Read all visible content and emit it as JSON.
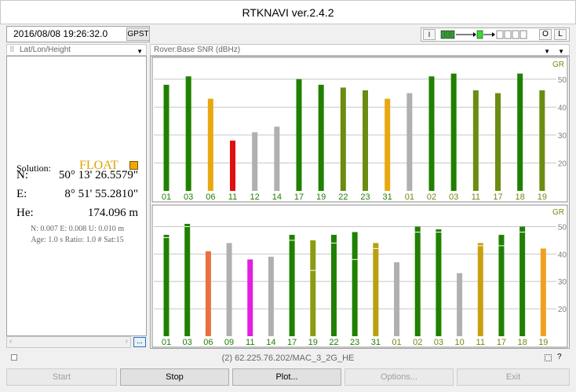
{
  "window": {
    "title": "RTKNAVI ver.2.4.2"
  },
  "toolbar": {
    "time": "2016/08/08 19:26:32.0",
    "time_system": "GPST",
    "i_label": "I",
    "o_label": "O",
    "l_label": "L"
  },
  "left": {
    "header": "Lat/Lon/Height",
    "solution_label": "Solution:",
    "solution_value": "FLOAT",
    "solution_color": "#f0a800",
    "n_label": "N:",
    "n_value": "50° 13' 26.5579\"",
    "e_label": "E:",
    "e_value": "8° 51' 55.2810\"",
    "he_label": "He:",
    "he_value": "174.096 m",
    "std_line": "N: 0.007 E: 0.008 U: 0.010 m",
    "age_line": "Age: 1.0 s Ratio: 1.0 # Sat:15",
    "dots_label": "..."
  },
  "right": {
    "header": "Rover:Base SNR (dBHz)"
  },
  "chart_data": [
    {
      "type": "bar",
      "corner_label": "GR",
      "ylim": [
        10,
        55
      ],
      "yticks": [
        20,
        30,
        40,
        50
      ],
      "grid": true,
      "categories": [
        "01",
        "03",
        "06",
        "11",
        "12",
        "14",
        "17",
        "19",
        "22",
        "23",
        "31",
        "01",
        "02",
        "03",
        "11",
        "17",
        "18",
        "19"
      ],
      "values": [
        48,
        51,
        43,
        28,
        31,
        33,
        50,
        48,
        47,
        46,
        43,
        45,
        51,
        52,
        46,
        45,
        52,
        46
      ],
      "colors": [
        "#208000",
        "#208000",
        "#e8a810",
        "#e01010",
        "#b0b0b0",
        "#b0b0b0",
        "#208000",
        "#208000",
        "#6c8c10",
        "#6c8c10",
        "#e8a810",
        "#b0b0b0",
        "#208000",
        "#208000",
        "#6c8c10",
        "#6c8c10",
        "#208000",
        "#6c8c10"
      ],
      "label_colors": [
        "#208000",
        "#208000",
        "#208000",
        "#208000",
        "#208000",
        "#208000",
        "#208000",
        "#208000",
        "#208000",
        "#208000",
        "#208000",
        "#6c8c10",
        "#6c8c10",
        "#6c8c10",
        "#6c8c10",
        "#6c8c10",
        "#6c8c10",
        "#6c8c10"
      ]
    },
    {
      "type": "bar",
      "corner_label": "GR",
      "ylim": [
        10,
        55
      ],
      "yticks": [
        20,
        30,
        40,
        50
      ],
      "grid": true,
      "categories": [
        "01",
        "03",
        "06",
        "09",
        "11",
        "14",
        "17",
        "19",
        "22",
        "23",
        "31",
        "01",
        "02",
        "03",
        "10",
        "11",
        "17",
        "18",
        "19"
      ],
      "values": [
        47,
        51,
        41,
        44,
        38,
        39,
        47,
        45,
        47,
        48,
        44,
        37,
        50,
        49,
        33,
        44,
        47,
        50,
        42
      ],
      "markers": [
        46,
        50,
        null,
        null,
        null,
        null,
        45,
        34,
        44,
        38,
        42,
        null,
        48,
        48,
        null,
        43,
        43,
        48,
        null
      ],
      "colors": [
        "#208000",
        "#208000",
        "#e87040",
        "#b0b0b0",
        "#e020e0",
        "#b0b0b0",
        "#208000",
        "#8c9c10",
        "#208000",
        "#208000",
        "#b8a010",
        "#b0b0b0",
        "#208000",
        "#208000",
        "#b0b0b0",
        "#c8a010",
        "#208000",
        "#208000",
        "#f0a020"
      ],
      "label_colors": [
        "#208000",
        "#208000",
        "#208000",
        "#208000",
        "#208000",
        "#208000",
        "#208000",
        "#208000",
        "#208000",
        "#208000",
        "#208000",
        "#6c8c10",
        "#6c8c10",
        "#6c8c10",
        "#6c8c10",
        "#6c8c10",
        "#6c8c10",
        "#6c8c10",
        "#6c8c10"
      ]
    }
  ],
  "status": {
    "text": "(2) 62.225.76.202/MAC_3_2G_HE",
    "help": "?"
  },
  "buttons": {
    "start": "Start",
    "stop": "Stop",
    "plot": "Plot...",
    "options": "Options...",
    "exit": "Exit"
  }
}
